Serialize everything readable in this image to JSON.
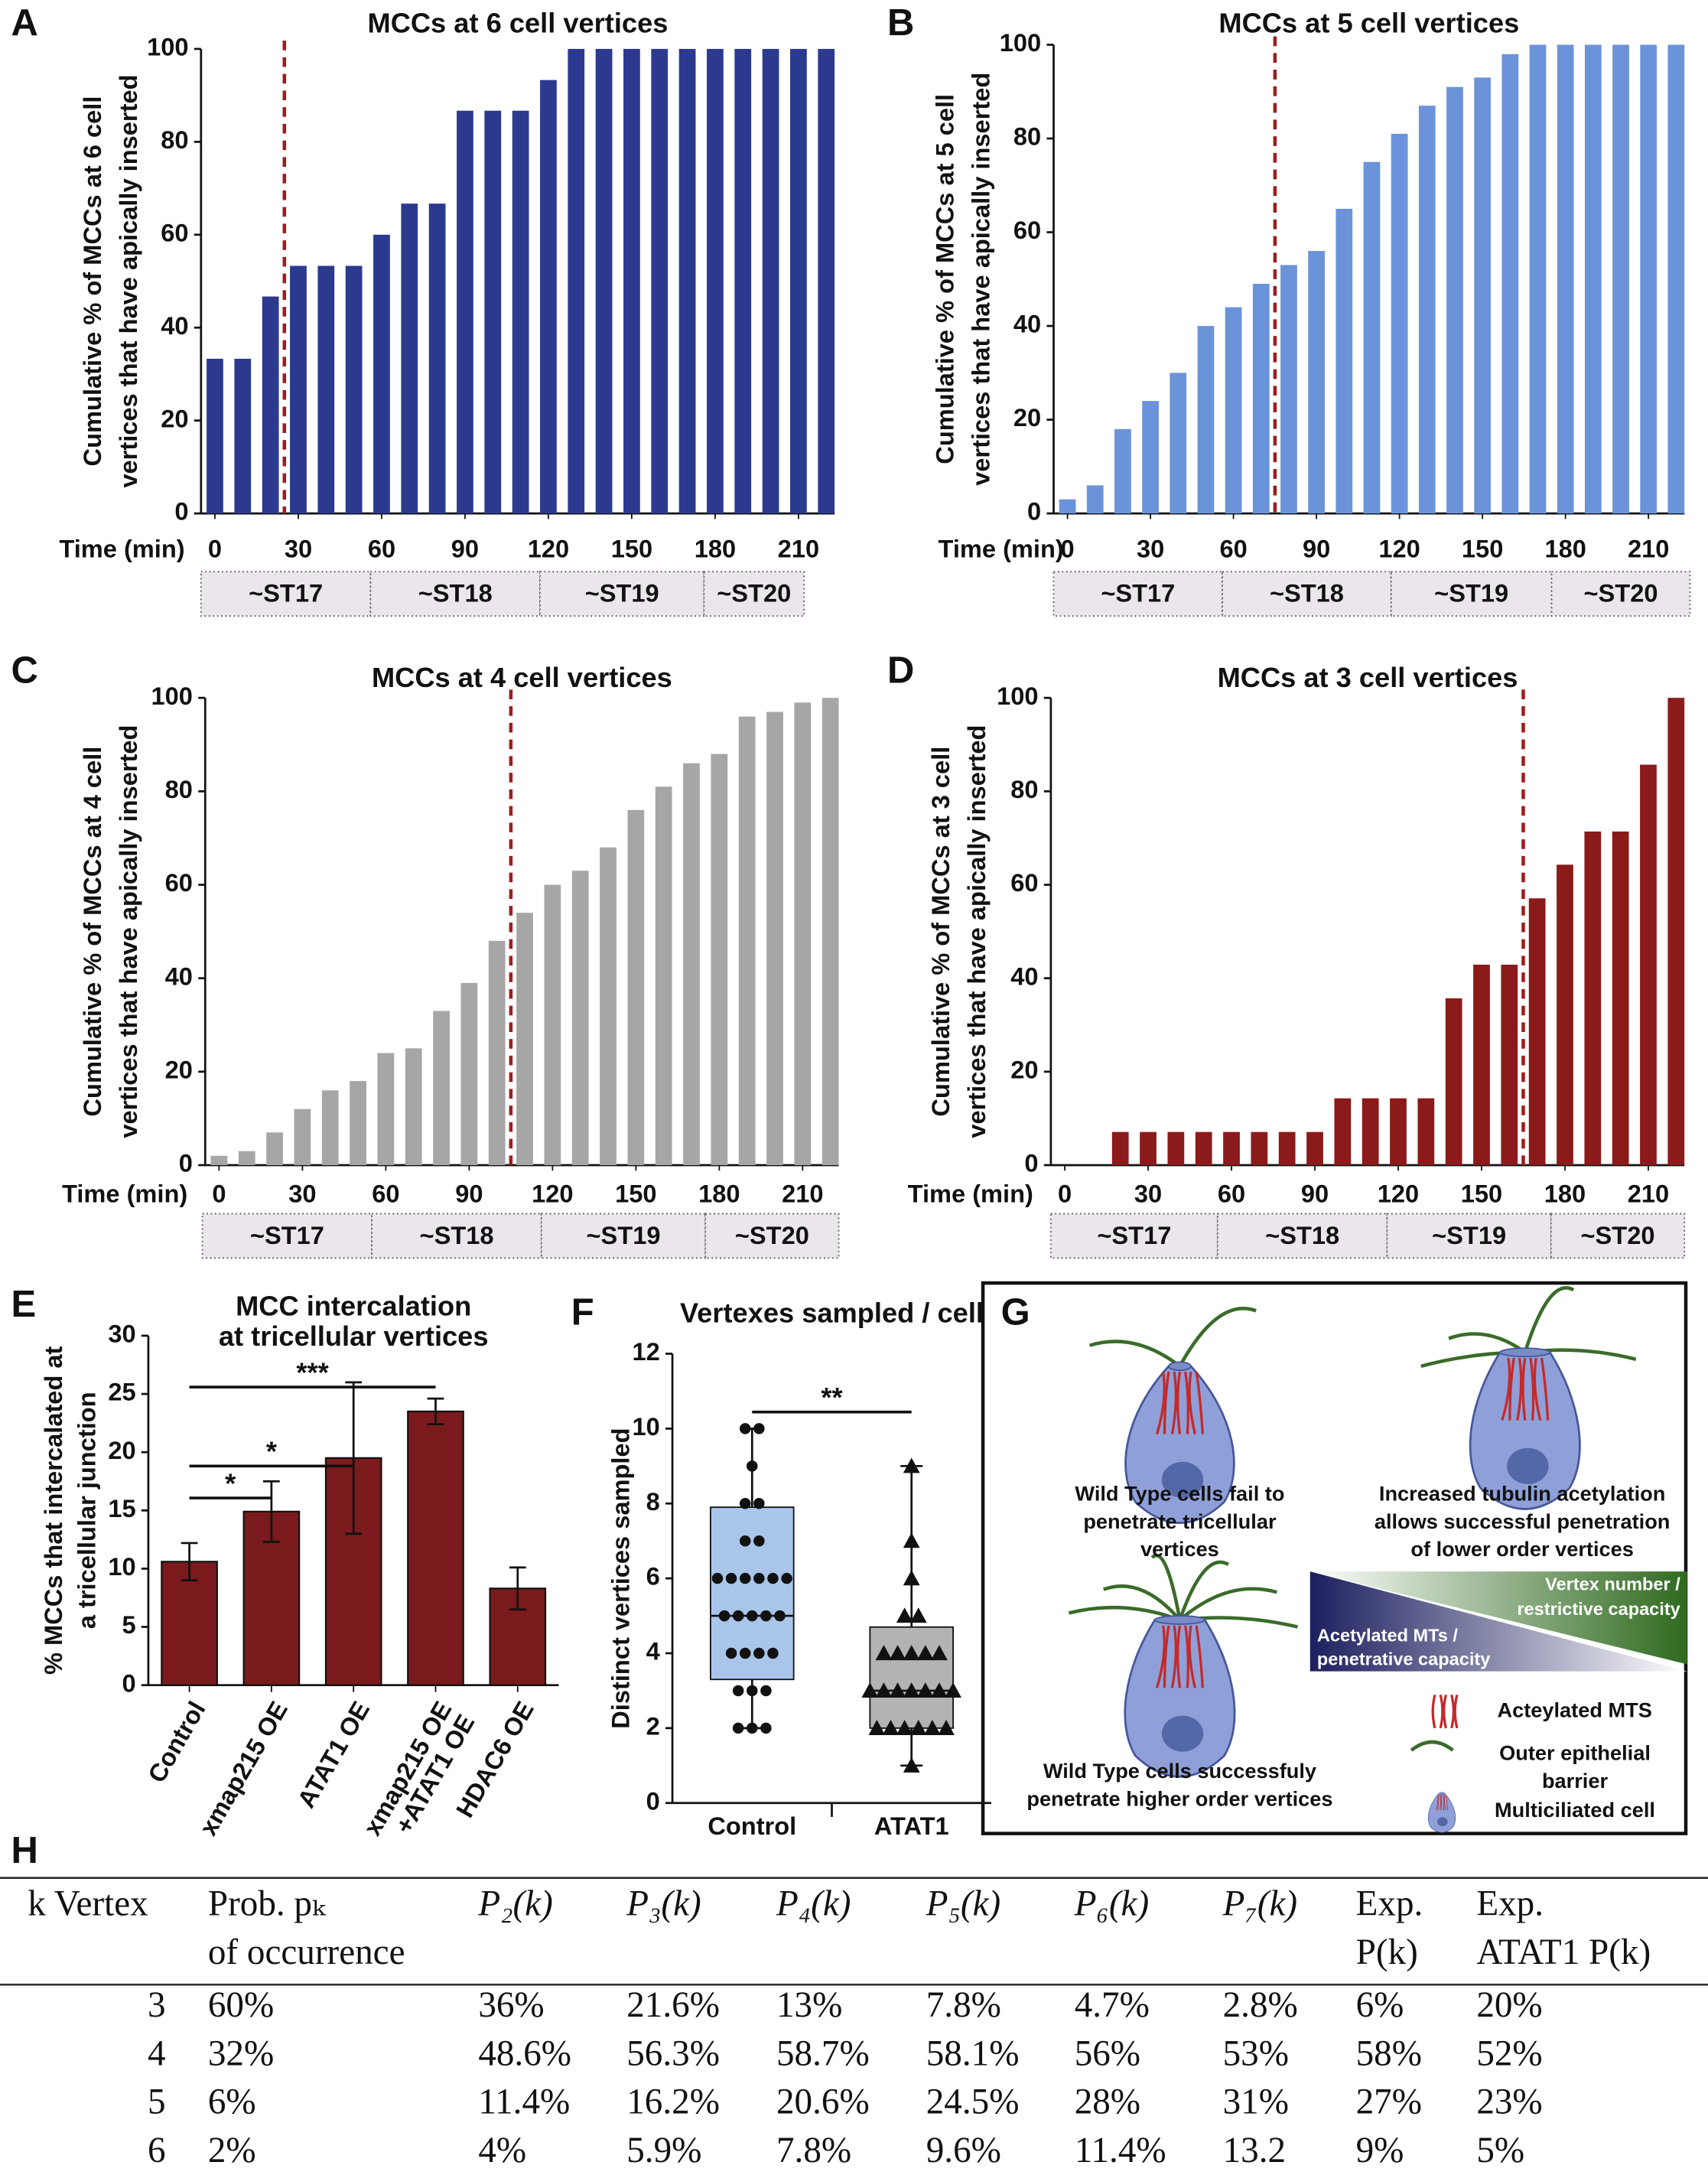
{
  "chart_data": [
    {
      "type": "bar",
      "panel_label": "A",
      "title": "MCCs at 6 cell vertices",
      "ylabel": [
        "Cumulative % of MCCs at 6 cell",
        "vertices that have apically inserted"
      ],
      "xlabel": "Time (min)",
      "x": [
        0,
        10,
        20,
        30,
        40,
        50,
        60,
        70,
        80,
        90,
        100,
        110,
        120,
        130,
        140,
        150,
        160,
        170,
        180,
        190,
        200,
        210,
        220
      ],
      "values": [
        33.3,
        33.3,
        46.7,
        53.3,
        53.3,
        53.3,
        60,
        66.7,
        66.7,
        86.7,
        86.7,
        86.7,
        93.3,
        100,
        100,
        100,
        100,
        100,
        100,
        100,
        100,
        100,
        100
      ],
      "color": "#2b3a8f",
      "xlim": [
        -5,
        223
      ],
      "xticks": [
        0,
        30,
        60,
        90,
        120,
        150,
        180,
        210
      ],
      "ylim": [
        0,
        100
      ],
      "yticks": [
        0,
        20,
        40,
        60,
        80,
        100
      ],
      "dashed_line_x": 25,
      "stages": [
        "~ST17",
        "~ST18",
        "~ST19",
        "~ST20"
      ],
      "stage_bounds": [
        -5,
        56,
        117,
        176,
        212
      ]
    },
    {
      "type": "bar",
      "panel_label": "B",
      "title": "MCCs at 5 cell vertices",
      "ylabel": [
        "Cumulative % of MCCs at 5 cell",
        "vertices that have apically inserted"
      ],
      "xlabel": "Time (min)",
      "x": [
        0,
        10,
        20,
        30,
        40,
        50,
        60,
        70,
        80,
        90,
        100,
        110,
        120,
        130,
        140,
        150,
        160,
        170,
        180,
        190,
        200,
        210,
        220
      ],
      "values": [
        3,
        6,
        18,
        24,
        30,
        40,
        44,
        49,
        53,
        56,
        65,
        75,
        81,
        87,
        91,
        93,
        98,
        100,
        100,
        100,
        100,
        100,
        100
      ],
      "color": "#6b93d9",
      "xlim": [
        -5,
        223
      ],
      "xticks": [
        0,
        30,
        60,
        90,
        120,
        150,
        180,
        210
      ],
      "ylim": [
        0,
        100
      ],
      "yticks": [
        0,
        20,
        40,
        60,
        80,
        100
      ],
      "dashed_line_x": 75,
      "stages": [
        "~ST17",
        "~ST18",
        "~ST19",
        "~ST20"
      ],
      "stage_bounds": [
        -5,
        56,
        117,
        175,
        225
      ]
    },
    {
      "type": "bar",
      "panel_label": "C",
      "title": "MCCs at 4 cell vertices",
      "ylabel": [
        "Cumulative % of MCCs at 4 cell",
        "vertices that have apically inserted"
      ],
      "xlabel": "Time (min)",
      "x": [
        0,
        10,
        20,
        30,
        40,
        50,
        60,
        70,
        80,
        90,
        100,
        110,
        120,
        130,
        140,
        150,
        160,
        170,
        180,
        190,
        200,
        210,
        220
      ],
      "values": [
        2,
        3,
        7,
        12,
        16,
        18,
        24,
        25,
        33,
        39,
        48,
        54,
        60,
        63,
        68,
        76,
        81,
        86,
        88,
        96,
        97,
        99,
        100
      ],
      "color": "#a6a6a6",
      "xlim": [
        -5,
        223
      ],
      "xticks": [
        0,
        30,
        60,
        90,
        120,
        150,
        180,
        210
      ],
      "ylim": [
        0,
        100
      ],
      "yticks": [
        0,
        20,
        40,
        60,
        80,
        100
      ],
      "dashed_line_x": 105,
      "stages": [
        "~ST17",
        "~ST18",
        "~ST19",
        "~ST20"
      ],
      "stage_bounds": [
        -6,
        55,
        116,
        175,
        223
      ]
    },
    {
      "type": "bar",
      "panel_label": "D",
      "title": "MCCs at 3 cell vertices",
      "ylabel": [
        "Cumulative % of MCCs at 3 cell",
        "vertices that have apically inserted"
      ],
      "xlabel": "Time (min)",
      "x": [
        0,
        10,
        20,
        30,
        40,
        50,
        60,
        70,
        80,
        90,
        100,
        110,
        120,
        130,
        140,
        150,
        160,
        170,
        180,
        190,
        200,
        210,
        220
      ],
      "values": [
        0,
        0,
        7.1,
        7.1,
        7.1,
        7.1,
        7.1,
        7.1,
        7.1,
        7.1,
        14.3,
        14.3,
        14.3,
        14.3,
        35.7,
        42.9,
        42.9,
        57.1,
        64.3,
        71.4,
        71.4,
        85.7,
        100
      ],
      "color": "#8b1a1a",
      "xlim": [
        -5,
        223
      ],
      "xticks": [
        0,
        30,
        60,
        90,
        120,
        150,
        180,
        210
      ],
      "ylim": [
        0,
        100
      ],
      "yticks": [
        0,
        20,
        40,
        60,
        80,
        100
      ],
      "dashed_line_x": 165,
      "stages": [
        "~ST17",
        "~ST18",
        "~ST19",
        "~ST20"
      ],
      "stage_bounds": [
        -5,
        55,
        116,
        175,
        223
      ]
    },
    {
      "type": "bar",
      "panel_label": "E",
      "title": [
        "MCC intercalation",
        "at tricellular vertices"
      ],
      "ylabel": [
        "% MCCs that intercalated at",
        "a tricellular junction"
      ],
      "categories": [
        [
          "Control"
        ],
        [
          "xmap215 OE"
        ],
        [
          "ATAT1 OE"
        ],
        [
          "xmap215 OE",
          "+ATAT1 OE"
        ],
        [
          "HDAC6 OE"
        ]
      ],
      "values": [
        10.6,
        14.9,
        19.5,
        23.5,
        8.3
      ],
      "errors": [
        1.6,
        2.6,
        6.5,
        1.1,
        1.8
      ],
      "color": "#7a1a1c",
      "ylim": [
        0,
        30
      ],
      "yticks": [
        0,
        5,
        10,
        15,
        20,
        25,
        30
      ],
      "significance": [
        {
          "from": 0,
          "to": 1,
          "label": "*"
        },
        {
          "from": 0,
          "to": 2,
          "label": "*"
        },
        {
          "from": 0,
          "to": 3,
          "label": "***"
        }
      ]
    },
    {
      "type": "box",
      "panel_label": "F",
      "title": "Vertexes sampled / cell",
      "ylabel": [
        "Distinct vertices sampled"
      ],
      "categories": [
        "Control",
        "ATAT1"
      ],
      "colors": [
        "#a9c5ea",
        "#b3b3b3"
      ],
      "markers": [
        "circle",
        "triangle"
      ],
      "stats": [
        {
          "min": 2,
          "q1": 3.3,
          "median": 5,
          "q3": 7.9,
          "max": 10
        },
        {
          "min": 1,
          "q1": 2,
          "median": 3,
          "q3": 4.7,
          "max": 9
        }
      ],
      "points": [
        [
          10,
          10,
          9,
          8,
          8,
          7,
          7,
          6,
          6,
          6,
          6,
          6,
          6,
          5,
          5,
          5,
          5,
          5,
          4,
          4,
          4,
          4,
          3,
          3,
          3,
          2,
          2,
          2
        ],
        [
          9,
          7,
          6,
          5,
          5,
          4,
          4,
          4,
          4,
          4,
          3,
          3,
          3,
          3,
          3,
          3,
          3,
          2,
          2,
          2,
          2,
          2,
          2,
          1
        ]
      ],
      "ylim": [
        0,
        12
      ],
      "yticks": [
        0,
        2,
        4,
        6,
        8,
        10,
        12
      ],
      "significance": [
        {
          "from": 0,
          "to": 1,
          "label": "**"
        }
      ]
    }
  ],
  "diagram": {
    "label": "G",
    "captions": [
      [
        "Wild Type cells fail to",
        "penetrate tricellular",
        "vertices"
      ],
      [
        "Increased tubulin acetylation",
        "allows successful penetration",
        "of lower order vertices"
      ],
      [
        "Wild Type cells successfuly",
        "penetrate higher order vertices"
      ]
    ],
    "gradient": [
      [
        "Vertex number /",
        "restrictive capacity"
      ],
      [
        "Acetylated MTs /",
        "penetrative capacity"
      ]
    ],
    "legend": [
      [
        "Acteylated MTS"
      ],
      [
        "Outer epithelial",
        "barrier"
      ],
      [
        "Multiciliated cell"
      ]
    ]
  },
  "table": {
    "label": "H",
    "header": [
      [
        "k Vertex"
      ],
      [
        "Prob. pₖ",
        "of occurrence"
      ],
      [
        "P₂(k)"
      ],
      [
        "P₃(k)"
      ],
      [
        "P₄(k)"
      ],
      [
        "P₅(k)"
      ],
      [
        "P₆(k)"
      ],
      [
        "P₇(k)"
      ],
      [
        "Exp.",
        "P(k)"
      ],
      [
        "Exp.",
        "ATAT1 P(k)"
      ]
    ],
    "rows": [
      [
        "3",
        "60%",
        "36%",
        "21.6%",
        "13%",
        "7.8%",
        "4.7%",
        "2.8%",
        "6%",
        "20%"
      ],
      [
        "4",
        "32%",
        "48.6%",
        "56.3%",
        "58.7%",
        "58.1%",
        "56%",
        "53%",
        "58%",
        "52%"
      ],
      [
        "5",
        "6%",
        "11.4%",
        "16.2%",
        "20.6%",
        "24.5%",
        "28%",
        "31%",
        "27%",
        "23%"
      ],
      [
        "6",
        "2%",
        "4%",
        "5.9%",
        "7.8%",
        "9.6%",
        "11.4%",
        "13.2",
        "9%",
        "5%"
      ]
    ]
  }
}
